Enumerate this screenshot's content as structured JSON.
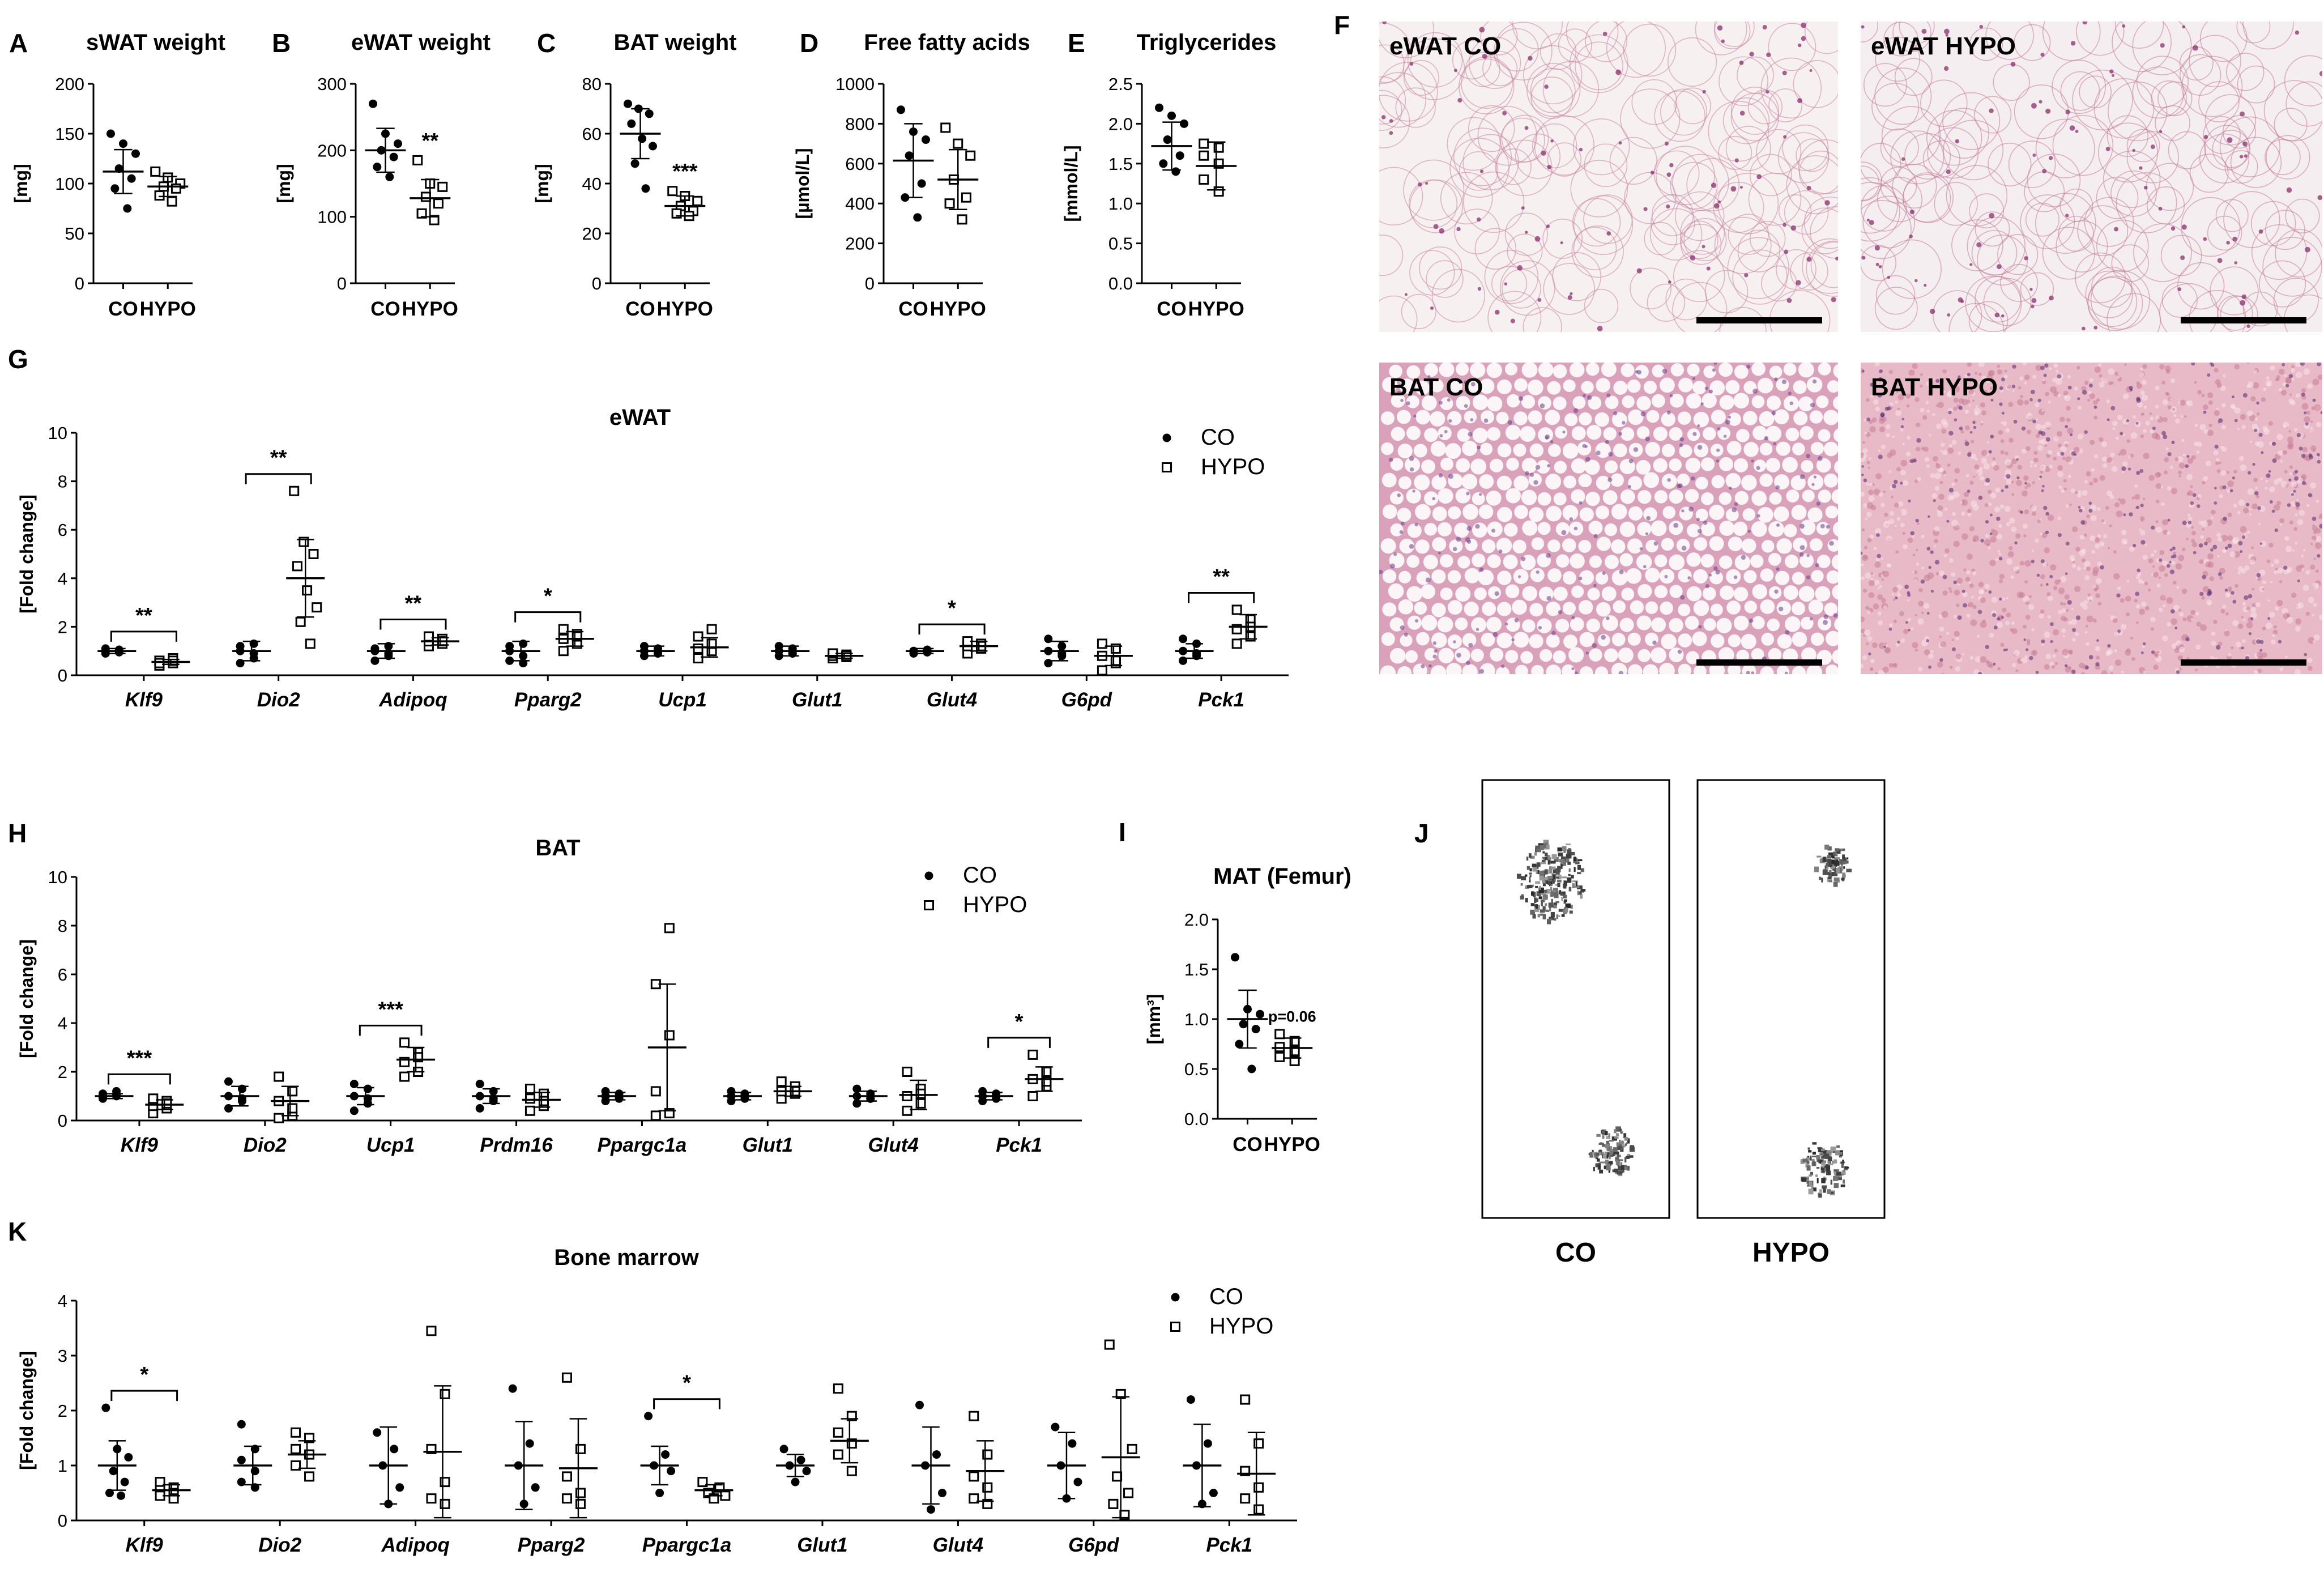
{
  "panels": [
    {
      "letter": "A",
      "title": "sWAT weight",
      "ylabel": "[mg]",
      "yticks": [
        "0",
        "50",
        "100",
        "150",
        "200"
      ],
      "ylim": [
        0,
        200
      ],
      "categories": [
        "CO",
        "HYPO"
      ],
      "sig": "",
      "groups": [
        {
          "name": "CO",
          "points": [
            150,
            140,
            130,
            115,
            105,
            95,
            75
          ],
          "mean": 112,
          "sd": 22
        },
        {
          "name": "HYPO",
          "points": [
            112,
            106,
            100,
            97,
            95,
            88,
            82
          ],
          "mean": 97,
          "sd": 10
        }
      ]
    },
    {
      "letter": "B",
      "title": "eWAT weight",
      "ylabel": "[mg]",
      "yticks": [
        "0",
        "100",
        "200",
        "300"
      ],
      "ylim": [
        0,
        300
      ],
      "categories": [
        "CO",
        "HYPO"
      ],
      "sig": "**",
      "groups": [
        {
          "name": "CO",
          "points": [
            270,
            225,
            210,
            200,
            190,
            175,
            160
          ],
          "mean": 200,
          "sd": 33
        },
        {
          "name": "HYPO",
          "points": [
            185,
            150,
            145,
            130,
            120,
            105,
            95
          ],
          "mean": 128,
          "sd": 28
        }
      ]
    },
    {
      "letter": "C",
      "title": "BAT weight",
      "ylabel": "[mg]",
      "yticks": [
        "0",
        "20",
        "40",
        "60",
        "80"
      ],
      "ylim": [
        0,
        80
      ],
      "categories": [
        "CO",
        "HYPO"
      ],
      "sig": "***",
      "groups": [
        {
          "name": "CO",
          "points": [
            72,
            70,
            68,
            64,
            58,
            55,
            48,
            38
          ],
          "mean": 60,
          "sd": 10
        },
        {
          "name": "HYPO",
          "points": [
            37,
            35,
            33,
            31,
            29,
            28,
            27
          ],
          "mean": 31,
          "sd": 4
        }
      ]
    },
    {
      "letter": "D",
      "title": "Free fatty acids",
      "ylabel": "[µmol/L]",
      "yticks": [
        "0",
        "200",
        "400",
        "600",
        "800",
        "1000"
      ],
      "ylim": [
        0,
        1000
      ],
      "categories": [
        "CO",
        "HYPO"
      ],
      "sig": "",
      "groups": [
        {
          "name": "CO",
          "points": [
            870,
            760,
            720,
            640,
            500,
            430,
            330
          ],
          "mean": 615,
          "sd": 185
        },
        {
          "name": "HYPO",
          "points": [
            780,
            700,
            640,
            520,
            430,
            400,
            320
          ],
          "mean": 520,
          "sd": 150
        }
      ]
    },
    {
      "letter": "E",
      "title": "Triglycerides",
      "ylabel": "[mmol/L]",
      "yticks": [
        "0.0",
        "0.5",
        "1.0",
        "1.5",
        "2.0",
        "2.5"
      ],
      "ylim": [
        0,
        2.5
      ],
      "categories": [
        "CO",
        "HYPO"
      ],
      "sig": "",
      "groups": [
        {
          "name": "CO",
          "points": [
            2.2,
            2.1,
            2.0,
            1.8,
            1.6,
            1.5,
            1.4
          ],
          "mean": 1.72,
          "sd": 0.3
        },
        {
          "name": "HYPO",
          "points": [
            1.75,
            1.7,
            1.6,
            1.5,
            1.3,
            1.15
          ],
          "mean": 1.47,
          "sd": 0.3
        }
      ]
    },
    {
      "letter": "I",
      "title": "MAT (Femur)",
      "ylabel": "[mm³]",
      "yticks": [
        "0.0",
        "0.5",
        "1.0",
        "1.5",
        "2.0"
      ],
      "ylim": [
        0,
        2
      ],
      "categories": [
        "CO",
        "HYPO"
      ],
      "sig": "p=0.06",
      "groups": [
        {
          "name": "CO",
          "points": [
            1.62,
            1.1,
            1.05,
            0.95,
            0.9,
            0.75,
            0.5
          ],
          "mean": 1.0,
          "sd": 0.29
        },
        {
          "name": "HYPO",
          "points": [
            0.85,
            0.78,
            0.72,
            0.68,
            0.62,
            0.58
          ],
          "mean": 0.71,
          "sd": 0.1
        }
      ]
    }
  ],
  "histology": {
    "letter": "F",
    "images": [
      {
        "label": "eWAT CO",
        "base": "#f6f0f1",
        "wall": "#c9839f",
        "type": "wat"
      },
      {
        "label": "eWAT HYPO",
        "base": "#f5eef0",
        "wall": "#c27a98",
        "type": "wat"
      },
      {
        "label": "BAT CO",
        "base": "#d9a2ba",
        "wall": "#b5638a",
        "type": "bat"
      },
      {
        "label": "BAT HYPO",
        "base": "#e8b9c7",
        "wall": "#c07a95",
        "type": "bathypo"
      }
    ]
  },
  "mat_image": {
    "letter": "J",
    "labels": [
      "CO",
      "HYPO"
    ]
  },
  "legend": {
    "co": "CO",
    "hypo": "HYPO"
  },
  "chart_data": [
    {
      "type": "scatter",
      "letter": "G",
      "title": "eWAT",
      "ylabel": "[Fold change]",
      "ylim": [
        0,
        10
      ],
      "yticks": [
        "0",
        "2",
        "4",
        "6",
        "8",
        "10"
      ],
      "categories": [
        "Klf9",
        "Dio2",
        "Adipoq",
        "Pparg2",
        "Ucp1",
        "Glut1",
        "Glut4",
        "G6pd",
        "Pck1"
      ],
      "significance": [
        "**",
        "**",
        "**",
        "*",
        "",
        "",
        "*",
        "",
        "**"
      ],
      "series": [
        {
          "name": "CO",
          "means": [
            1.0,
            1.0,
            1.0,
            1.0,
            1.0,
            1.0,
            1.0,
            1.0,
            1.0
          ],
          "sd": [
            0.1,
            0.4,
            0.3,
            0.4,
            0.2,
            0.2,
            0.1,
            0.4,
            0.3
          ],
          "points": [
            [
              0.9,
              0.95,
              1.0,
              1.05,
              1.1,
              1.0
            ],
            [
              0.5,
              0.7,
              1.0,
              1.3,
              1.2,
              0.9
            ],
            [
              0.6,
              0.8,
              1.0,
              1.2,
              1.1,
              0.9
            ],
            [
              0.6,
              0.8,
              1.0,
              1.3,
              1.2,
              0.5
            ],
            [
              0.8,
              0.9,
              1.0,
              1.1,
              1.2,
              0.9
            ],
            [
              0.8,
              0.9,
              1.0,
              1.1,
              1.2,
              0.9
            ],
            [
              0.9,
              0.95,
              1.0,
              1.05,
              1.0,
              0.95
            ],
            [
              0.5,
              0.8,
              1.0,
              1.2,
              1.5,
              0.9
            ],
            [
              0.6,
              0.8,
              1.0,
              1.3,
              1.5,
              0.9
            ]
          ]
        },
        {
          "name": "HYPO",
          "means": [
            0.55,
            4.0,
            1.4,
            1.5,
            1.15,
            0.8,
            1.2,
            0.8,
            2.0
          ],
          "sd": [
            0.1,
            1.6,
            0.15,
            0.3,
            0.4,
            0.1,
            0.2,
            0.4,
            0.5
          ],
          "points": [
            [
              0.4,
              0.5,
              0.6,
              0.7,
              0.5,
              0.6
            ],
            [
              7.6,
              5.5,
              5.0,
              4.5,
              3.5,
              2.8,
              2.2,
              1.3
            ],
            [
              1.2,
              1.3,
              1.4,
              1.5,
              1.6,
              1.4
            ],
            [
              1.0,
              1.3,
              1.5,
              1.7,
              1.9,
              1.6
            ],
            [
              0.7,
              1.0,
              1.1,
              1.3,
              1.6,
              1.9
            ],
            [
              0.7,
              0.75,
              0.8,
              0.85,
              0.9,
              0.8
            ],
            [
              0.9,
              1.1,
              1.2,
              1.3,
              1.4,
              1.2
            ],
            [
              0.2,
              0.5,
              0.8,
              1.1,
              1.3,
              0.6
            ],
            [
              1.3,
              1.6,
              1.9,
              2.3,
              2.7,
              2.0
            ]
          ]
        }
      ]
    },
    {
      "type": "scatter",
      "letter": "H",
      "title": "BAT",
      "ylabel": "[Fold change]",
      "ylim": [
        0,
        10
      ],
      "yticks": [
        "0",
        "2",
        "4",
        "6",
        "8",
        "10"
      ],
      "categories": [
        "Klf9",
        "Dio2",
        "Ucp1",
        "Prdm16",
        "Ppargc1a",
        "Glut1",
        "Glut4",
        "Pck1"
      ],
      "significance": [
        "***",
        "",
        "***",
        "",
        "",
        "",
        "",
        "*"
      ],
      "series": [
        {
          "name": "CO",
          "means": [
            1.0,
            1.0,
            1.0,
            1.0,
            1.0,
            1.0,
            1.0,
            1.0
          ],
          "sd": [
            0.1,
            0.4,
            0.35,
            0.3,
            0.15,
            0.15,
            0.2,
            0.15
          ],
          "points": [
            [
              0.9,
              1.0,
              1.1,
              1.2,
              0.95,
              1.05
            ],
            [
              0.5,
              0.8,
              1.0,
              1.3,
              1.6,
              0.9
            ],
            [
              0.4,
              0.7,
              1.0,
              1.3,
              1.5,
              0.9
            ],
            [
              0.5,
              0.8,
              1.0,
              1.2,
              1.5,
              0.9
            ],
            [
              0.8,
              0.9,
              1.0,
              1.1,
              1.2,
              0.95
            ],
            [
              0.8,
              0.9,
              1.0,
              1.1,
              1.2,
              1.0
            ],
            [
              0.7,
              0.9,
              1.0,
              1.1,
              1.3,
              0.9
            ],
            [
              0.8,
              0.9,
              1.0,
              1.1,
              1.2,
              1.0
            ]
          ]
        },
        {
          "name": "HYPO",
          "means": [
            0.65,
            0.8,
            2.5,
            0.85,
            3.0,
            1.2,
            1.05,
            1.7
          ],
          "sd": [
            0.2,
            0.6,
            0.5,
            0.3,
            2.6,
            0.2,
            0.6,
            0.5
          ],
          "points": [
            [
              0.3,
              0.5,
              0.6,
              0.8,
              0.9,
              0.7
            ],
            [
              0.1,
              0.2,
              0.8,
              1.2,
              1.8,
              0.5
            ],
            [
              1.8,
              2.0,
              2.4,
              2.8,
              3.2,
              2.6
            ],
            [
              0.4,
              0.6,
              0.9,
              1.1,
              1.3,
              0.8
            ],
            [
              0.2,
              0.3,
              1.2,
              3.5,
              5.6,
              7.9
            ],
            [
              0.9,
              1.1,
              1.2,
              1.4,
              1.6,
              1.2
            ],
            [
              0.4,
              0.7,
              1.0,
              1.3,
              2.0,
              1.1
            ],
            [
              1.0,
              1.4,
              1.7,
              2.0,
              2.7,
              1.6
            ]
          ]
        }
      ]
    },
    {
      "type": "scatter",
      "letter": "K",
      "title": "Bone marrow",
      "ylabel": "[Fold change]",
      "ylim": [
        0,
        4
      ],
      "yticks": [
        "0",
        "1",
        "2",
        "3",
        "4"
      ],
      "categories": [
        "Klf9",
        "Dio2",
        "Adipoq",
        "Pparg2",
        "Ppargc1a",
        "Glut1",
        "Glut4",
        "G6pd",
        "Pck1"
      ],
      "significance": [
        "*",
        "",
        "",
        "",
        "*",
        "",
        "",
        "",
        ""
      ],
      "series": [
        {
          "name": "CO",
          "means": [
            1.0,
            1.0,
            1.0,
            1.0,
            1.0,
            1.0,
            1.0,
            1.0,
            1.0
          ],
          "sd": [
            0.45,
            0.35,
            0.7,
            0.8,
            0.35,
            0.2,
            0.7,
            0.6,
            0.75
          ],
          "points": [
            [
              2.05,
              1.3,
              1.15,
              0.9,
              0.7,
              0.5,
              0.45
            ],
            [
              1.75,
              1.3,
              1.1,
              0.9,
              0.7,
              0.6
            ],
            [
              1.6,
              1.3,
              1.0,
              0.6,
              0.3
            ],
            [
              2.4,
              1.4,
              1.0,
              0.6,
              0.3
            ],
            [
              1.9,
              1.2,
              1.0,
              0.9,
              0.5
            ],
            [
              1.3,
              1.1,
              1.0,
              0.9,
              0.7
            ],
            [
              2.1,
              1.2,
              1.0,
              0.5,
              0.2
            ],
            [
              1.7,
              1.4,
              1.0,
              0.7,
              0.4
            ],
            [
              2.2,
              1.4,
              1.0,
              0.5,
              0.3
            ]
          ]
        },
        {
          "name": "HYPO",
          "means": [
            0.55,
            1.2,
            1.25,
            0.95,
            0.55,
            1.45,
            0.9,
            1.15,
            0.85
          ],
          "sd": [
            0.1,
            0.25,
            1.2,
            0.9,
            0.1,
            0.4,
            0.55,
            1.1,
            0.75
          ],
          "points": [
            [
              0.7,
              0.6,
              0.55,
              0.5,
              0.45,
              0.4
            ],
            [
              1.6,
              1.5,
              1.3,
              1.2,
              1.0,
              0.8
            ],
            [
              3.45,
              2.3,
              1.3,
              0.7,
              0.4,
              0.3
            ],
            [
              2.6,
              1.3,
              0.8,
              0.5,
              0.4,
              0.3
            ],
            [
              0.7,
              0.6,
              0.5,
              0.45,
              0.4
            ],
            [
              2.4,
              1.9,
              1.6,
              1.4,
              1.2,
              0.9
            ],
            [
              1.9,
              1.2,
              0.8,
              0.6,
              0.4,
              0.3
            ],
            [
              3.2,
              2.3,
              1.3,
              0.8,
              0.5,
              0.3,
              0.1
            ],
            [
              2.2,
              1.4,
              0.9,
              0.6,
              0.4,
              0.2
            ]
          ]
        }
      ]
    }
  ]
}
